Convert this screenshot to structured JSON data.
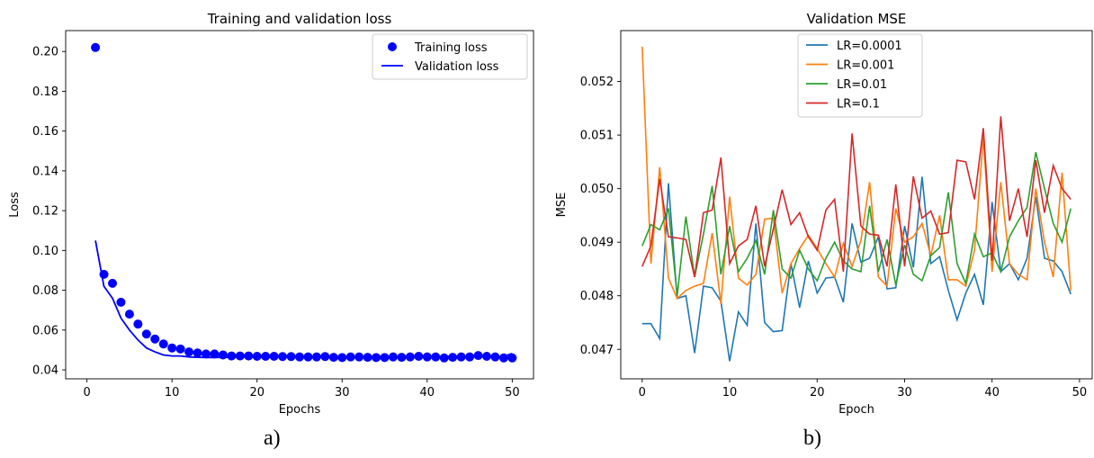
{
  "chart_data": [
    {
      "type": "scatter+line",
      "title": "Training and validation loss",
      "xlabel": "Epochs",
      "ylabel": "Loss",
      "xlim": [
        -2.5,
        52.5
      ],
      "ylim": [
        0.0355,
        0.2105
      ],
      "xticks": [
        0,
        10,
        20,
        30,
        40,
        50
      ],
      "yticks": [
        0.04,
        0.06,
        0.08,
        0.1,
        0.12,
        0.14,
        0.16,
        0.18,
        0.2
      ],
      "ytick_labels": [
        "0.04",
        "0.06",
        "0.08",
        "0.10",
        "0.12",
        "0.14",
        "0.16",
        "0.18",
        "0.20"
      ],
      "grid": false,
      "legend_position": "top-right",
      "series": [
        {
          "name": "Training loss",
          "kind": "points",
          "color": "#0000ff",
          "x": [
            1,
            2,
            3,
            4,
            5,
            6,
            7,
            8,
            9,
            10,
            11,
            12,
            13,
            14,
            15,
            16,
            17,
            18,
            19,
            20,
            21,
            22,
            23,
            24,
            25,
            26,
            27,
            28,
            29,
            30,
            31,
            32,
            33,
            34,
            35,
            36,
            37,
            38,
            39,
            40,
            41,
            42,
            43,
            44,
            45,
            46,
            47,
            48,
            49,
            50
          ],
          "y": [
            0.202,
            0.088,
            0.0835,
            0.074,
            0.068,
            0.063,
            0.058,
            0.0555,
            0.053,
            0.051,
            0.0505,
            0.049,
            0.0485,
            0.048,
            0.048,
            0.0475,
            0.047,
            0.047,
            0.047,
            0.0468,
            0.0468,
            0.0468,
            0.0467,
            0.0467,
            0.0465,
            0.0465,
            0.0465,
            0.0467,
            0.0463,
            0.0462,
            0.0465,
            0.0465,
            0.0463,
            0.0462,
            0.0462,
            0.0465,
            0.0463,
            0.0465,
            0.0468,
            0.0465,
            0.0465,
            0.046,
            0.0463,
            0.0465,
            0.0465,
            0.0472,
            0.0468,
            0.0465,
            0.046,
            0.046
          ]
        },
        {
          "name": "Validation loss",
          "kind": "line",
          "color": "#0000ff",
          "x": [
            1,
            2,
            3,
            4,
            5,
            6,
            7,
            8,
            9,
            10,
            11,
            12,
            13,
            14,
            15,
            16,
            17,
            18,
            19,
            20,
            21,
            22,
            23,
            24,
            25,
            26,
            27,
            28,
            29,
            30,
            31,
            32,
            33,
            34,
            35,
            36,
            37,
            38,
            39,
            40,
            41,
            42,
            43,
            44,
            45,
            46,
            47,
            48,
            49,
            50
          ],
          "y": [
            0.105,
            0.082,
            0.076,
            0.066,
            0.06,
            0.055,
            0.051,
            0.049,
            0.0475,
            0.047,
            0.047,
            0.0465,
            0.0463,
            0.0462,
            0.0462,
            0.0463,
            0.0463,
            0.0465,
            0.0465,
            0.0465,
            0.0465,
            0.0465,
            0.0465,
            0.0465,
            0.0465,
            0.0465,
            0.0465,
            0.0465,
            0.0465,
            0.0465,
            0.0465,
            0.0465,
            0.0465,
            0.0465,
            0.0465,
            0.0465,
            0.0467,
            0.0468,
            0.047,
            0.0468,
            0.0467,
            0.0467,
            0.0468,
            0.0468,
            0.047,
            0.047,
            0.0468,
            0.0465,
            0.0468,
            0.0482
          ]
        }
      ]
    },
    {
      "type": "line",
      "title": "Validation MSE",
      "xlabel": "Epoch",
      "ylabel": "MSE",
      "xlim": [
        -2.45,
        51.45
      ],
      "ylim": [
        0.04645,
        0.05295
      ],
      "xticks": [
        0,
        10,
        20,
        30,
        40,
        50
      ],
      "yticks": [
        0.047,
        0.048,
        0.049,
        0.05,
        0.051,
        0.052
      ],
      "ytick_labels": [
        "0.047",
        "0.048",
        "0.049",
        "0.050",
        "0.051",
        "0.052"
      ],
      "grid": false,
      "legend_position": "top-center",
      "x": [
        0,
        1,
        2,
        3,
        4,
        5,
        6,
        7,
        8,
        9,
        10,
        11,
        12,
        13,
        14,
        15,
        16,
        17,
        18,
        19,
        20,
        21,
        22,
        23,
        24,
        25,
        26,
        27,
        28,
        29,
        30,
        31,
        32,
        33,
        34,
        35,
        36,
        37,
        38,
        39,
        40,
        41,
        42,
        43,
        44,
        45,
        46,
        47,
        48,
        49
      ],
      "series": [
        {
          "name": "LR=0.0001",
          "color": "#1f77b4",
          "values": [
            0.04748,
            0.04748,
            0.0472,
            0.0501,
            0.04795,
            0.048,
            0.04693,
            0.04818,
            0.04815,
            0.0479,
            0.04678,
            0.0477,
            0.04745,
            0.04935,
            0.0475,
            0.04733,
            0.04735,
            0.0486,
            0.04778,
            0.04865,
            0.04805,
            0.04833,
            0.04835,
            0.04788,
            0.04935,
            0.04863,
            0.0487,
            0.0491,
            0.04813,
            0.04815,
            0.0493,
            0.04853,
            0.05022,
            0.0486,
            0.04873,
            0.0481,
            0.04755,
            0.04805,
            0.0484,
            0.04783,
            0.04975,
            0.04845,
            0.0486,
            0.0483,
            0.0487,
            0.04985,
            0.0487,
            0.04865,
            0.04845,
            0.04803
          ]
        },
        {
          "name": "LR=0.001",
          "color": "#ff7f0e",
          "values": [
            0.05265,
            0.0486,
            0.0504,
            0.04833,
            0.04795,
            0.0481,
            0.04818,
            0.04823,
            0.04917,
            0.04785,
            0.04985,
            0.04833,
            0.0482,
            0.0484,
            0.04943,
            0.04945,
            0.04805,
            0.0486,
            0.04888,
            0.04913,
            0.04888,
            0.0486,
            0.04835,
            0.04898,
            0.04855,
            0.04903,
            0.05012,
            0.04835,
            0.04818,
            0.04963,
            0.049,
            0.0491,
            0.04935,
            0.04875,
            0.0495,
            0.0483,
            0.0483,
            0.04818,
            0.04885,
            0.05095,
            0.04845,
            0.05012,
            0.0486,
            0.0484,
            0.0483,
            0.05,
            0.049,
            0.04835,
            0.0503,
            0.0481
          ]
        },
        {
          "name": "LR=0.01",
          "color": "#2ca02c",
          "values": [
            0.04893,
            0.04933,
            0.04923,
            0.04963,
            0.048,
            0.04948,
            0.04835,
            0.04915,
            0.05005,
            0.0484,
            0.0493,
            0.04845,
            0.0487,
            0.04903,
            0.0484,
            0.0496,
            0.0485,
            0.04833,
            0.04885,
            0.0485,
            0.04828,
            0.0487,
            0.049,
            0.04865,
            0.0485,
            0.04845,
            0.04968,
            0.04845,
            0.04905,
            0.0482,
            0.04895,
            0.0484,
            0.04828,
            0.04875,
            0.0489,
            0.04993,
            0.0486,
            0.04823,
            0.04915,
            0.04873,
            0.0488,
            0.04845,
            0.0491,
            0.0494,
            0.04965,
            0.05068,
            0.05,
            0.04935,
            0.049,
            0.04963
          ]
        },
        {
          "name": "LR=0.1",
          "color": "#d62728",
          "values": [
            0.04855,
            0.04893,
            0.05018,
            0.0491,
            0.04908,
            0.04905,
            0.04835,
            0.04955,
            0.0496,
            0.05058,
            0.0486,
            0.04893,
            0.04905,
            0.04968,
            0.04855,
            0.04925,
            0.04998,
            0.04933,
            0.04955,
            0.0491,
            0.04885,
            0.0496,
            0.0498,
            0.04845,
            0.05103,
            0.0493,
            0.04915,
            0.04913,
            0.04855,
            0.05008,
            0.04855,
            0.05023,
            0.04945,
            0.04958,
            0.04915,
            0.04918,
            0.05053,
            0.0505,
            0.0498,
            0.05113,
            0.04865,
            0.05135,
            0.0494,
            0.05,
            0.0491,
            0.05053,
            0.04955,
            0.05043,
            0.05,
            0.0498
          ]
        }
      ]
    }
  ],
  "captions": {
    "left": "a)",
    "right": "b)"
  }
}
